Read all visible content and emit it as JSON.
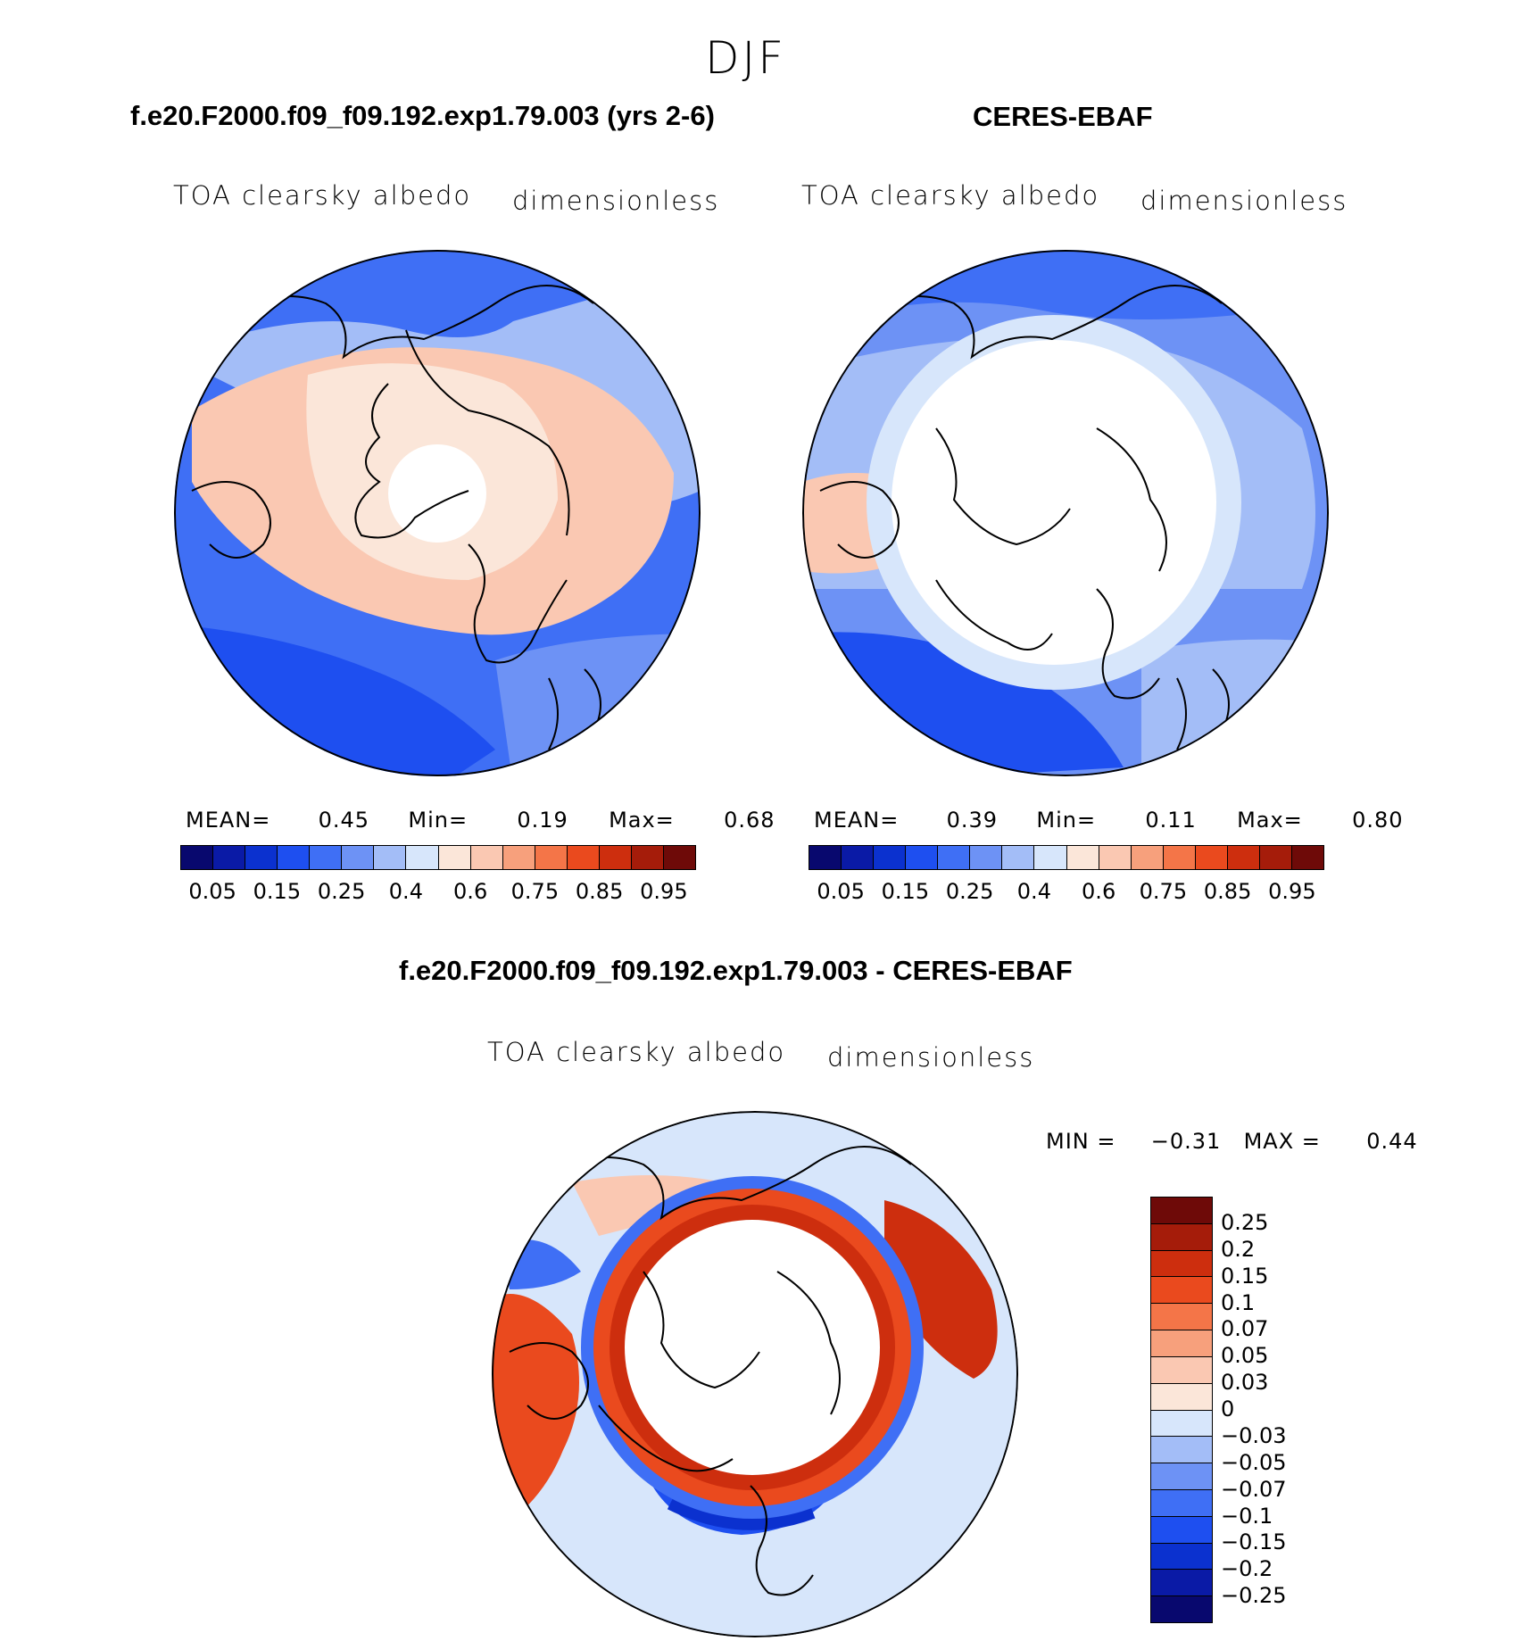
{
  "figure": {
    "season": "DJF",
    "panels": [
      {
        "title": "f.e20.F2000.f09_f09.192.exp1.79.003 (yrs 2-6)",
        "variable": "TOA clearsky albedo",
        "units": "dimensionless",
        "stats": {
          "mean_label": "MEAN=",
          "mean": "0.45",
          "min_label": "Min=",
          "min": "0.19",
          "max_label": "Max=",
          "max": "0.68"
        }
      },
      {
        "title": "CERES-EBAF",
        "variable": "TOA clearsky albedo",
        "units": "dimensionless",
        "stats": {
          "mean_label": "MEAN=",
          "mean": "0.39",
          "min_label": "Min=",
          "min": "0.11",
          "max_label": "Max=",
          "max": "0.80"
        }
      },
      {
        "title": "f.e20.F2000.f09_f09.192.exp1.79.003 - CERES-EBAF",
        "variable": "TOA clearsky albedo",
        "units": "dimensionless",
        "minmax": {
          "min_label": "MIN =",
          "min": "−0.31",
          "max_label": "MAX =",
          "max": "0.44"
        }
      }
    ]
  },
  "colorbars": {
    "abs": {
      "colors": [
        "#08086e",
        "#0a1aa6",
        "#0b31cf",
        "#1e4ff0",
        "#3f6ff5",
        "#6d92f5",
        "#a3bdf7",
        "#d7e6fb",
        "#fbe6d9",
        "#fac8b2",
        "#f7a07c",
        "#f47548",
        "#ea4a1e",
        "#cd2e0e",
        "#a51c0a",
        "#6e0a08"
      ],
      "tick_labels": [
        "0.05",
        "0.15",
        "0.25",
        "0.4",
        "0.6",
        "0.75",
        "0.85",
        "0.95"
      ]
    },
    "diff": {
      "colors": [
        "#6e0a08",
        "#a51c0a",
        "#cd2e0e",
        "#ea4a1e",
        "#f47548",
        "#f7a07c",
        "#fac8b2",
        "#fbe6d9",
        "#d7e6fb",
        "#a3bdf7",
        "#6d92f5",
        "#3f6ff5",
        "#1e4ff0",
        "#0b31cf",
        "#0a1aa6",
        "#08086e"
      ],
      "tick_labels": [
        "0.25",
        "0.2",
        "0.15",
        "0.1",
        "0.07",
        "0.05",
        "0.03",
        "0",
        "−0.03",
        "−0.05",
        "−0.07",
        "−0.1",
        "−0.15",
        "−0.2",
        "−0.25"
      ]
    }
  }
}
